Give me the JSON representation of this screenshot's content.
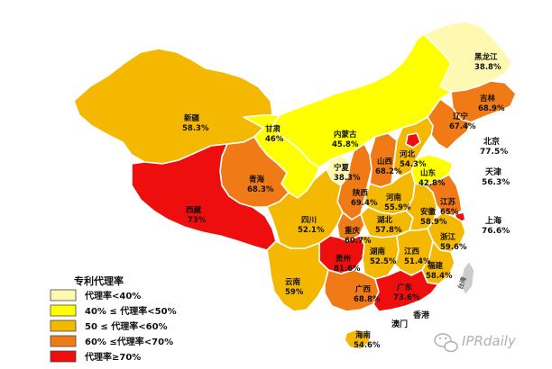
{
  "colors": {
    "lt40": "#fff8b0",
    "40to50": "#ffff00",
    "50to60": "#f5b800",
    "60to70": "#ef7a16",
    "ge70": "#ee0e0e",
    "taiwan": "#cccccc"
  },
  "provinces": [
    {
      "id": "heilongjiang",
      "name": "黑龙江",
      "rate": "38.8%",
      "band": "lt40"
    },
    {
      "id": "jilin",
      "name": "吉林",
      "rate": "68.9%",
      "band": "60to70"
    },
    {
      "id": "liaoning",
      "name": "辽宁",
      "rate": "67.4%",
      "band": "60to70"
    },
    {
      "id": "neimenggu",
      "name": "内蒙古",
      "rate": "45.8%",
      "band": "40to50"
    },
    {
      "id": "xinjiang",
      "name": "新疆",
      "rate": "58.3%",
      "band": "50to60"
    },
    {
      "id": "gansu",
      "name": "甘肃",
      "rate": "46%",
      "band": "40to50"
    },
    {
      "id": "qinghai",
      "name": "青海",
      "rate": "68.3%",
      "band": "60to70"
    },
    {
      "id": "xizang",
      "name": "西藏",
      "rate": "73%",
      "band": "ge70"
    },
    {
      "id": "ningxia",
      "name": "宁夏",
      "rate": "38.3%",
      "band": "lt40"
    },
    {
      "id": "shaanxi",
      "name": "陕西",
      "rate": "69.4%",
      "band": "60to70"
    },
    {
      "id": "shanxi",
      "name": "山西",
      "rate": "68.2%",
      "band": "60to70"
    },
    {
      "id": "hebei",
      "name": "河北",
      "rate": "54.3%",
      "band": "50to60"
    },
    {
      "id": "beijing_shape",
      "name": "",
      "rate": "",
      "band": "ge70"
    },
    {
      "id": "shandong",
      "name": "山东",
      "rate": "42.8%",
      "band": "40to50"
    },
    {
      "id": "henan",
      "name": "河南",
      "rate": "55.9%",
      "band": "50to60"
    },
    {
      "id": "sichuan",
      "name": "四川",
      "rate": "52.1%",
      "band": "50to60"
    },
    {
      "id": "chongqing",
      "name": "重庆",
      "rate": "60.7%",
      "band": "60to70"
    },
    {
      "id": "hubei",
      "name": "湖北",
      "rate": "57.8%",
      "band": "50to60"
    },
    {
      "id": "anhui",
      "name": "安徽",
      "rate": "58.9%",
      "band": "50to60"
    },
    {
      "id": "jiangsu",
      "name": "江苏",
      "rate": "65%",
      "band": "60to70"
    },
    {
      "id": "shanghai_shape",
      "name": "",
      "rate": "",
      "band": "ge70"
    },
    {
      "id": "zhejiang",
      "name": "浙江",
      "rate": "59.6%",
      "band": "50to60"
    },
    {
      "id": "guizhou",
      "name": "贵州",
      "rate": "81.6%",
      "band": "ge70"
    },
    {
      "id": "hunan",
      "name": "湖南",
      "rate": "52.5%",
      "band": "50to60"
    },
    {
      "id": "jiangxi",
      "name": "江西",
      "rate": "51.4%",
      "band": "50to60"
    },
    {
      "id": "fujian",
      "name": "福建",
      "rate": "58.4%",
      "band": "50to60"
    },
    {
      "id": "yunnan",
      "name": "云南",
      "rate": "59%",
      "band": "50to60"
    },
    {
      "id": "guangxi",
      "name": "广西",
      "rate": "68.8%",
      "band": "60to70"
    },
    {
      "id": "guangdong",
      "name": "广东",
      "rate": "73.6%",
      "band": "ge70"
    },
    {
      "id": "hainan",
      "name": "海南",
      "rate": "54.6%",
      "band": "50to60"
    },
    {
      "id": "taiwan",
      "name": "台湾",
      "rate": "",
      "band": "taiwan"
    }
  ],
  "outside_labels": [
    {
      "name": "北京",
      "rate": "77.5%"
    },
    {
      "name": "天津",
      "rate": "56.3%"
    },
    {
      "name": "上海",
      "rate": "76.6%"
    },
    {
      "name": "香港",
      "rate": ""
    },
    {
      "name": "澳门",
      "rate": ""
    }
  ],
  "legend": {
    "title": "专利代理率",
    "items": [
      {
        "band": "lt40",
        "label": "代理率<40%"
      },
      {
        "band": "40to50",
        "label": "40% ≤  代理率<50%"
      },
      {
        "band": "50to60",
        "label": "50  ≤  代理率<60%"
      },
      {
        "band": "60to70",
        "label": "60% ≤代理率<70%"
      },
      {
        "band": "ge70",
        "label": "代理率≥70%"
      }
    ]
  },
  "watermark": {
    "text": "IPRdaily",
    "icon": "wechat-icon"
  }
}
